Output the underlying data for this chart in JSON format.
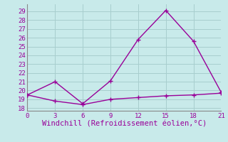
{
  "line1_x": [
    0,
    3,
    6,
    9,
    12,
    15,
    18,
    21
  ],
  "line1_y": [
    19.5,
    21.0,
    18.5,
    21.1,
    25.8,
    29.1,
    25.6,
    19.8
  ],
  "line2_x": [
    0,
    3,
    6,
    9,
    12,
    15,
    18,
    21
  ],
  "line2_y": [
    19.5,
    18.8,
    18.4,
    19.0,
    19.2,
    19.4,
    19.5,
    19.7
  ],
  "line_color": "#990099",
  "bg_color": "#c8eaea",
  "grid_color": "#a8cece",
  "xlabel": "Windchill (Refroidissement éolien,°C)",
  "xlabel_color": "#990099",
  "xticks": [
    0,
    3,
    6,
    9,
    12,
    15,
    18,
    21
  ],
  "yticks": [
    18,
    19,
    20,
    21,
    22,
    23,
    24,
    25,
    26,
    27,
    28,
    29
  ],
  "ylim": [
    17.7,
    29.8
  ],
  "xlim": [
    0,
    21
  ],
  "marker": "+",
  "markersize": 5,
  "linewidth": 1.0,
  "tick_color": "#990099",
  "tick_fontsize": 6.5,
  "xlabel_fontsize": 7.5,
  "spine_color": "#888888"
}
